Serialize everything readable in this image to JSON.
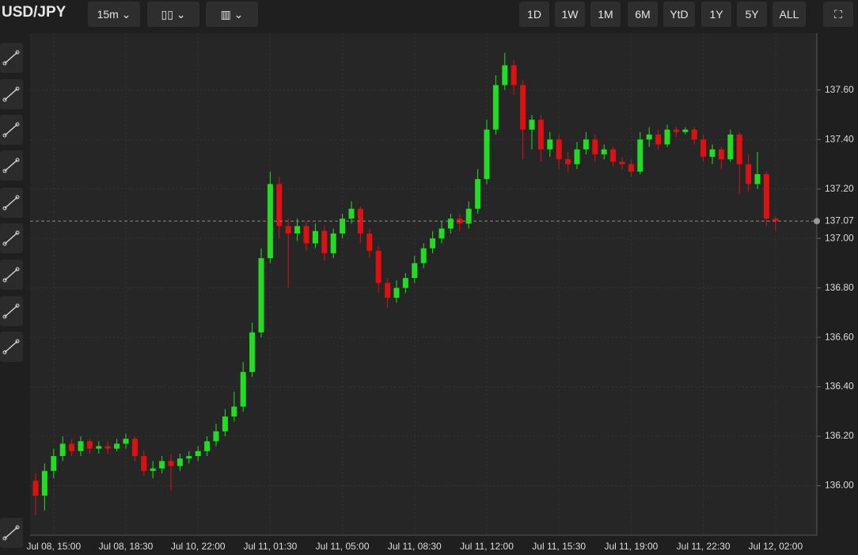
{
  "toolbar": {
    "symbol": "USD/JPY",
    "interval": "15m",
    "ranges": [
      "1D",
      "1W",
      "1M",
      "6M",
      "YtD",
      "1Y",
      "5Y",
      "ALL"
    ]
  },
  "chart_data": {
    "type": "candlestick",
    "colors": {
      "up": "#22dd22",
      "down": "#dd1111"
    },
    "categories": [
      null,
      null,
      "Jul 08, 15:00",
      null,
      null,
      null,
      null,
      null,
      null,
      null,
      "Jul 08, 18:30",
      null,
      null,
      null,
      null,
      null,
      null,
      null,
      "Jul 10, 22:00",
      null,
      null,
      null,
      null,
      null,
      null,
      null,
      "Jul 11, 01:30",
      null,
      null,
      null,
      null,
      null,
      null,
      null,
      "Jul 11, 05:00",
      null,
      null,
      null,
      null,
      null,
      null,
      null,
      "Jul 11, 08:30",
      null,
      null,
      null,
      null,
      null,
      null,
      null,
      "Jul 11, 12:00",
      null,
      null,
      null,
      null,
      null,
      null,
      null,
      "Jul 11, 15:30",
      null,
      null,
      null,
      null,
      null,
      null,
      null,
      "Jul 11, 19:00",
      null,
      null,
      null,
      null,
      null,
      null,
      null,
      "Jul 11, 22:30",
      null,
      null,
      null,
      null,
      null,
      null,
      null,
      "Jul 12, 02:00"
    ],
    "ohlc": [
      [
        136.02,
        136.05,
        135.88,
        135.96
      ],
      [
        135.96,
        136.09,
        135.9,
        136.06
      ],
      [
        136.06,
        136.15,
        136.03,
        136.12
      ],
      [
        136.12,
        136.2,
        136.1,
        136.17
      ],
      [
        136.17,
        136.19,
        136.12,
        136.14
      ],
      [
        136.14,
        136.2,
        136.12,
        136.18
      ],
      [
        136.18,
        136.19,
        136.13,
        136.15
      ],
      [
        136.15,
        136.18,
        136.13,
        136.16
      ],
      [
        136.16,
        136.18,
        136.13,
        136.15
      ],
      [
        136.15,
        136.19,
        136.14,
        136.17
      ],
      [
        136.17,
        136.21,
        136.15,
        136.19
      ],
      [
        136.19,
        136.2,
        136.1,
        136.12
      ],
      [
        136.12,
        136.14,
        136.04,
        136.06
      ],
      [
        136.06,
        136.1,
        136.03,
        136.07
      ],
      [
        136.07,
        136.12,
        136.05,
        136.1
      ],
      [
        136.1,
        136.13,
        135.98,
        136.08
      ],
      [
        136.08,
        136.13,
        136.06,
        136.11
      ],
      [
        136.11,
        136.14,
        136.09,
        136.12
      ],
      [
        136.12,
        136.16,
        136.1,
        136.14
      ],
      [
        136.14,
        136.2,
        136.12,
        136.18
      ],
      [
        136.18,
        136.25,
        136.16,
        136.22
      ],
      [
        136.22,
        136.31,
        136.2,
        136.28
      ],
      [
        136.28,
        136.38,
        136.26,
        136.32
      ],
      [
        136.32,
        136.5,
        136.3,
        136.46
      ],
      [
        136.46,
        136.66,
        136.44,
        136.62
      ],
      [
        136.62,
        136.96,
        136.6,
        136.92
      ],
      [
        136.92,
        137.27,
        136.9,
        137.22
      ],
      [
        137.22,
        137.25,
        137.0,
        137.05
      ],
      [
        137.05,
        137.08,
        136.8,
        137.02
      ],
      [
        137.02,
        137.08,
        136.99,
        137.05
      ],
      [
        137.05,
        137.07,
        136.95,
        136.98
      ],
      [
        136.98,
        137.06,
        136.96,
        137.03
      ],
      [
        137.03,
        137.05,
        136.91,
        136.94
      ],
      [
        136.94,
        137.04,
        136.92,
        137.02
      ],
      [
        137.02,
        137.1,
        137.0,
        137.08
      ],
      [
        137.08,
        137.15,
        137.06,
        137.12
      ],
      [
        137.12,
        137.13,
        136.98,
        137.02
      ],
      [
        137.02,
        137.04,
        136.92,
        136.95
      ],
      [
        136.95,
        136.97,
        136.78,
        136.82
      ],
      [
        136.82,
        136.84,
        136.72,
        136.76
      ],
      [
        136.76,
        136.83,
        136.74,
        136.8
      ],
      [
        136.8,
        136.86,
        136.78,
        136.84
      ],
      [
        136.84,
        136.93,
        136.82,
        136.9
      ],
      [
        136.9,
        136.98,
        136.88,
        136.96
      ],
      [
        136.96,
        137.03,
        136.94,
        137.0
      ],
      [
        137.0,
        137.07,
        136.98,
        137.04
      ],
      [
        137.04,
        137.1,
        137.02,
        137.08
      ],
      [
        137.08,
        137.1,
        137.03,
        137.06
      ],
      [
        137.06,
        137.15,
        137.04,
        137.12
      ],
      [
        137.12,
        137.28,
        137.1,
        137.24
      ],
      [
        137.24,
        137.48,
        137.22,
        137.44
      ],
      [
        137.44,
        137.66,
        137.42,
        137.62
      ],
      [
        137.62,
        137.75,
        137.6,
        137.7
      ],
      [
        137.7,
        137.72,
        137.58,
        137.62
      ],
      [
        137.62,
        137.64,
        137.32,
        137.44
      ],
      [
        137.44,
        137.5,
        137.36,
        137.48
      ],
      [
        137.48,
        137.5,
        137.31,
        137.36
      ],
      [
        137.36,
        137.43,
        137.33,
        137.4
      ],
      [
        137.4,
        137.42,
        137.28,
        137.32
      ],
      [
        137.32,
        137.35,
        137.27,
        137.3
      ],
      [
        137.3,
        137.39,
        137.28,
        137.36
      ],
      [
        137.36,
        137.43,
        137.34,
        137.4
      ],
      [
        137.4,
        137.42,
        137.31,
        137.34
      ],
      [
        137.34,
        137.38,
        137.32,
        137.36
      ],
      [
        137.36,
        137.37,
        137.29,
        137.31
      ],
      [
        137.31,
        137.33,
        137.28,
        137.3
      ],
      [
        137.3,
        137.32,
        137.25,
        137.27
      ],
      [
        137.27,
        137.43,
        137.26,
        137.4
      ],
      [
        137.4,
        137.45,
        137.37,
        137.42
      ],
      [
        137.42,
        137.44,
        137.36,
        137.38
      ],
      [
        137.38,
        137.46,
        137.37,
        137.44
      ],
      [
        137.44,
        137.45,
        137.41,
        137.43
      ],
      [
        137.43,
        137.45,
        137.42,
        137.44
      ],
      [
        137.44,
        137.45,
        137.38,
        137.4
      ],
      [
        137.4,
        137.42,
        137.31,
        137.33
      ],
      [
        137.33,
        137.38,
        137.3,
        137.36
      ],
      [
        137.36,
        137.37,
        137.28,
        137.32
      ],
      [
        137.32,
        137.44,
        137.31,
        137.42
      ],
      [
        137.42,
        137.43,
        137.18,
        137.3
      ],
      [
        137.3,
        137.34,
        137.19,
        137.22
      ],
      [
        137.22,
        137.35,
        137.2,
        137.26
      ],
      [
        137.26,
        137.27,
        137.05,
        137.08
      ],
      [
        137.08,
        137.09,
        137.03,
        137.07
      ]
    ],
    "ylim": [
      135.8,
      137.82
    ],
    "yticks": [
      {
        "value": 136,
        "label": "136.00"
      },
      {
        "value": 136.2,
        "label": "136.20"
      },
      {
        "value": 136.4,
        "label": "136.40"
      },
      {
        "value": 136.6,
        "label": "136.60"
      },
      {
        "value": 136.8,
        "label": "136.80"
      },
      {
        "value": 137,
        "label": "137.00"
      },
      {
        "value": 137.2,
        "label": "137.20"
      },
      {
        "value": 137.4,
        "label": "137.40"
      },
      {
        "value": 137.6,
        "label": "137.60"
      }
    ],
    "last": {
      "value": 137.07,
      "label": "137.07"
    },
    "grid": true
  }
}
